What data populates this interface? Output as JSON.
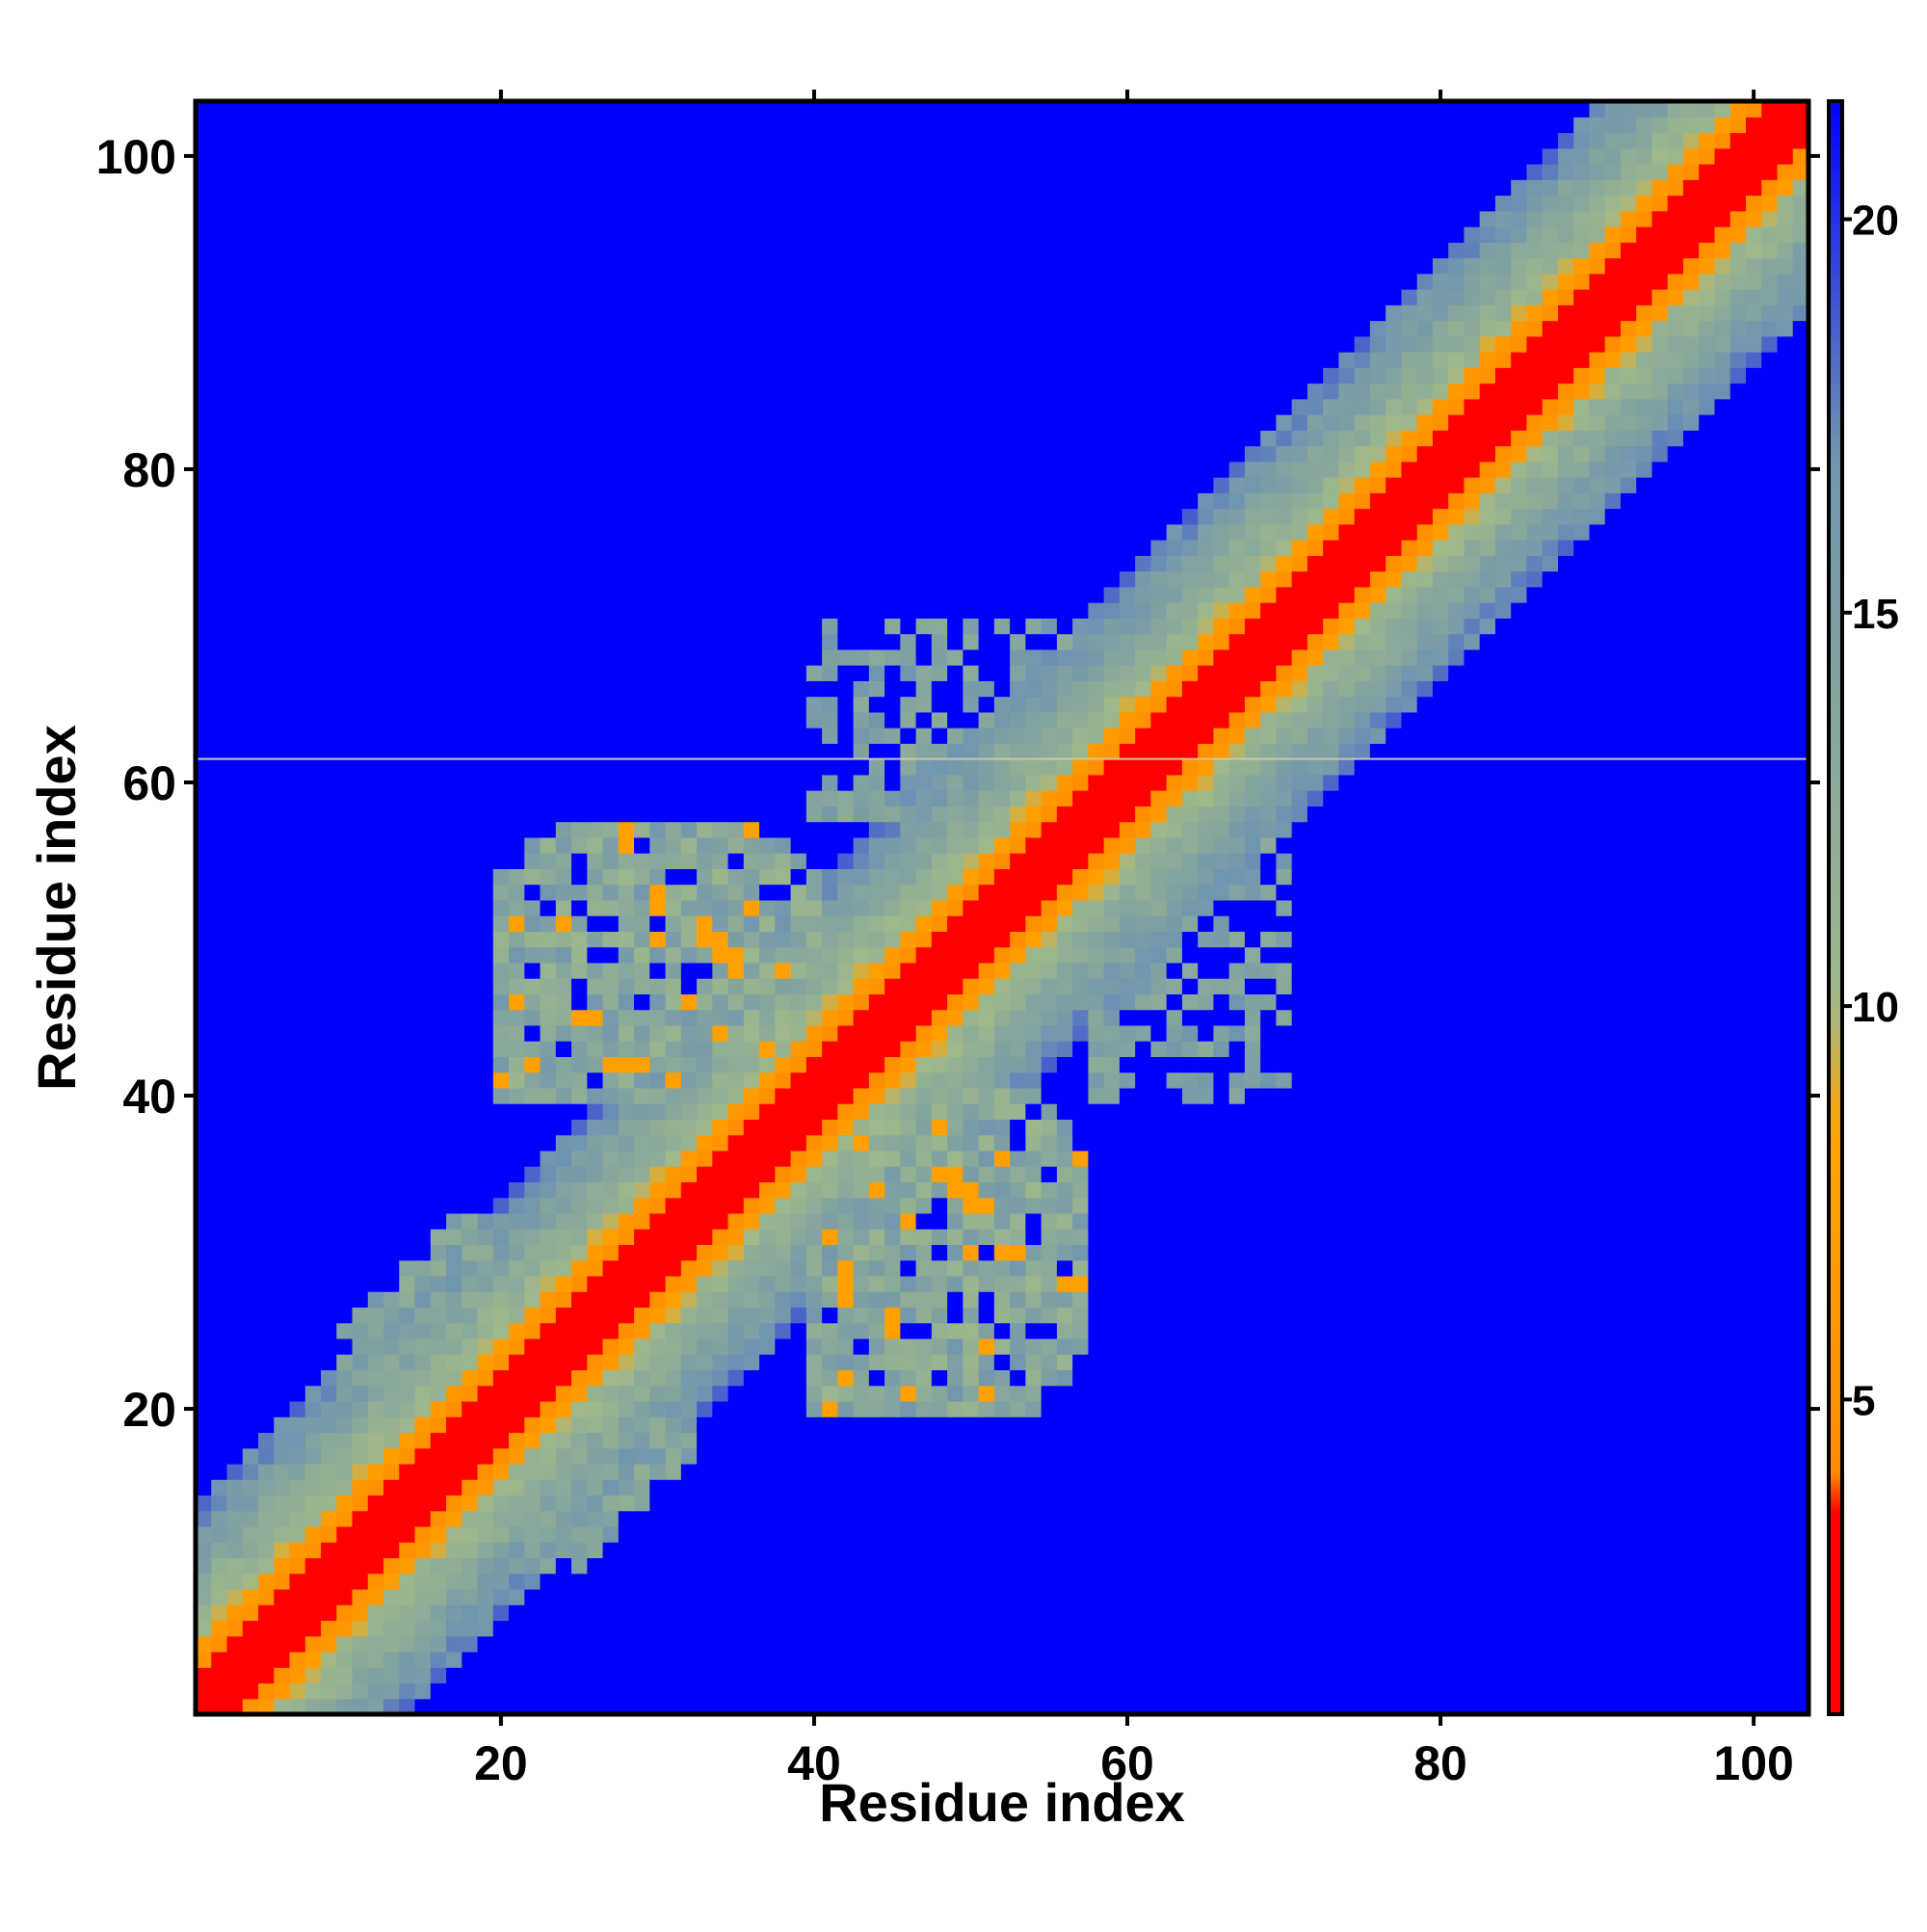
{
  "chart_data": {
    "type": "heatmap",
    "title": "",
    "xlabel": "Residue index",
    "ylabel": "Residue index",
    "n_residues": 103,
    "xlim": [
      0.5,
      103.5
    ],
    "ylim": [
      0.5,
      103.5
    ],
    "x_ticks": [
      20,
      40,
      60,
      80,
      100
    ],
    "y_ticks": [
      20,
      40,
      60,
      80,
      100
    ],
    "x_tick_labels": [
      "20",
      "40",
      "60",
      "80",
      "100"
    ],
    "y_tick_labels": [
      "20",
      "40",
      "60",
      "80",
      "100"
    ],
    "colorbar": {
      "min": 1,
      "max": 21.5,
      "ticks": [
        5,
        10,
        15,
        20
      ],
      "tick_labels": [
        "5",
        "10",
        "15",
        "20"
      ],
      "colors": [
        "#ff0000",
        "#ff8c00",
        "#ffa500",
        "#9fb88a",
        "#6f95b0",
        "#0000ff"
      ],
      "stops": [
        1,
        4,
        8.5,
        10,
        17,
        21.5
      ]
    },
    "matrix_description": "symmetric residue distance map: near-diagonal values small (red <4), increasing with |i-j|; off-diagonal contact cluster around residues 20-55 x 20-55; background beyond cutoff",
    "background_value": 21.5,
    "contact_region": {
      "x": [
        10,
        57
      ],
      "y": [
        15,
        57
      ]
    },
    "highlight_row": 61.5,
    "highlight_color": "#c8c8a0",
    "grid": false
  }
}
